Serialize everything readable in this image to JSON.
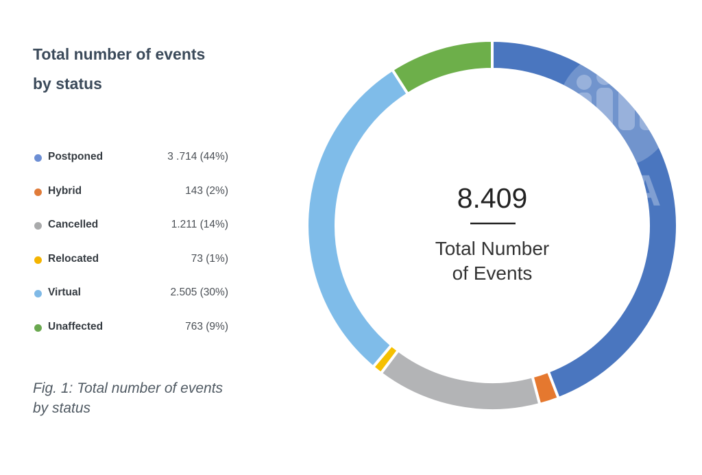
{
  "title": "Total number of events by status",
  "legend": [
    {
      "label": "Postponed",
      "value_text": "3 .714 (44%)",
      "color": "#6c8ed4"
    },
    {
      "label": "Hybrid",
      "value_text": "143 (2%)",
      "color": "#e07b39"
    },
    {
      "label": "Cancelled",
      "value_text": "1.211 (14%)",
      "color": "#a9aaab"
    },
    {
      "label": "Relocated",
      "value_text": "73 (1%)",
      "color": "#f4b400"
    },
    {
      "label": "Virtual",
      "value_text": "2.505 (30%)",
      "color": "#7fb9e6"
    },
    {
      "label": "Unaffected",
      "value_text": "763 (9%)",
      "color": "#6aa84f"
    }
  ],
  "caption": "Fig. 1: Total number of events by status",
  "center": {
    "value": "8.409",
    "label_line1": "Total Number",
    "label_line2": "of Events"
  },
  "watermark": "ICCA",
  "chart_data": {
    "type": "pie",
    "title": "Total number of events by status",
    "total": 8409,
    "categories": [
      "Postponed",
      "Hybrid",
      "Cancelled",
      "Relocated",
      "Virtual",
      "Unaffected"
    ],
    "values": [
      3714,
      143,
      1211,
      73,
      2505,
      763
    ],
    "percentages": [
      44,
      2,
      14,
      1,
      30,
      9
    ],
    "colors": [
      "#4a76bf",
      "#e5782f",
      "#b3b4b6",
      "#f5c000",
      "#7fbce9",
      "#6daf4a"
    ],
    "start_angle_deg": 0,
    "direction": "clockwise",
    "legend_position": "left"
  }
}
